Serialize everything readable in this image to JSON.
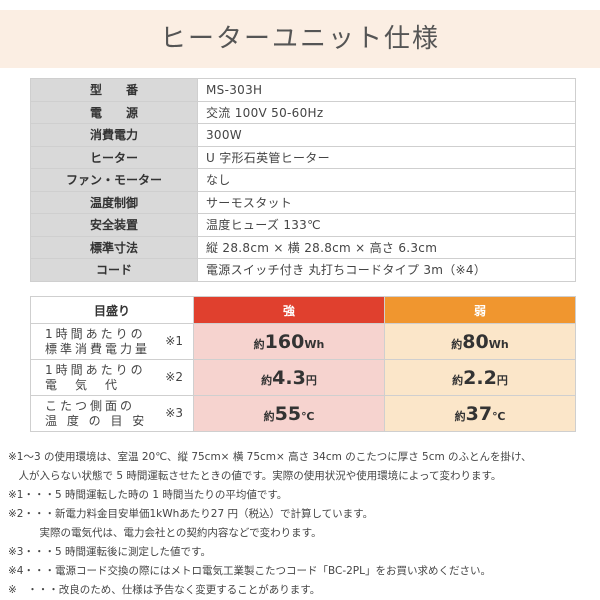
{
  "title": "ヒーターユニット仕様",
  "spec": [
    {
      "key": "型　　番",
      "value": "MS-303H"
    },
    {
      "key": "電　　源",
      "value": "交流 100V 50-60Hz"
    },
    {
      "key": "消費電力",
      "value": "300W"
    },
    {
      "key": "ヒーター",
      "value": "U 字形石英管ヒーター"
    },
    {
      "key": "ファン・モーター",
      "value": "なし"
    },
    {
      "key": "温度制御",
      "value": "サーモスタット"
    },
    {
      "key": "安全装置",
      "value": "温度ヒューズ 133℃"
    },
    {
      "key": "標準寸法",
      "value": "縦 28.8cm × 横 28.8cm × 高さ 6.3cm"
    },
    {
      "key": "コード",
      "value": "電源スイッチ付き 丸打ちコードタイプ 3m（※4）"
    }
  ],
  "usage": {
    "header": {
      "label": "目盛り",
      "strong": "強",
      "weak": "弱"
    },
    "rows": [
      {
        "line1": "1時間あたりの",
        "line2": "標準消費電力量",
        "ref": "※1",
        "prefix": "約",
        "strong": "160",
        "weak": "80",
        "unit": "Wh"
      },
      {
        "line1": "1時間あたりの",
        "line2": "電　気　代",
        "ref": "※2",
        "prefix": "約",
        "strong": "4.3",
        "weak": "2.2",
        "unit": "円"
      },
      {
        "line1": "こたつ側面の",
        "line2": "温 度 の 目 安",
        "ref": "※3",
        "prefix": "約",
        "strong": "55",
        "weak": "37",
        "unit": "℃"
      }
    ]
  },
  "notes": [
    "※1〜3 の使用環境は、室温 20℃、縦 75cm× 横 75cm× 高さ 34cm のこたつに厚さ 5cm のふとんを掛け、",
    "　人が入らない状態で 5 時間運転させたときの値です。実際の使用状況や使用環境によって変わります。",
    "※1・・・5 時間運転した時の 1 時間当たりの平均値です。",
    "※2・・・新電力料金目安単価1kWhあたり27 円（税込）で計算しています。",
    "　　　実際の電気代は、電力会社との契約内容などで変わります。",
    "※3・・・5 時間運転後に測定した値です。",
    "※4・・・電源コード交換の際にはメトロ電気工業製こたつコード「BC-2PL」をお買い求めください。",
    "※　・・・改良のため、仕様は予告なく変更することがあります。"
  ],
  "colors": {
    "title_bg": "#fbeee3",
    "strong": "#e0402e",
    "weak": "#f0962f",
    "strong_cell": "#f6d3cf",
    "weak_cell": "#fbe6c9",
    "key_cell": "#d9d9d9"
  }
}
